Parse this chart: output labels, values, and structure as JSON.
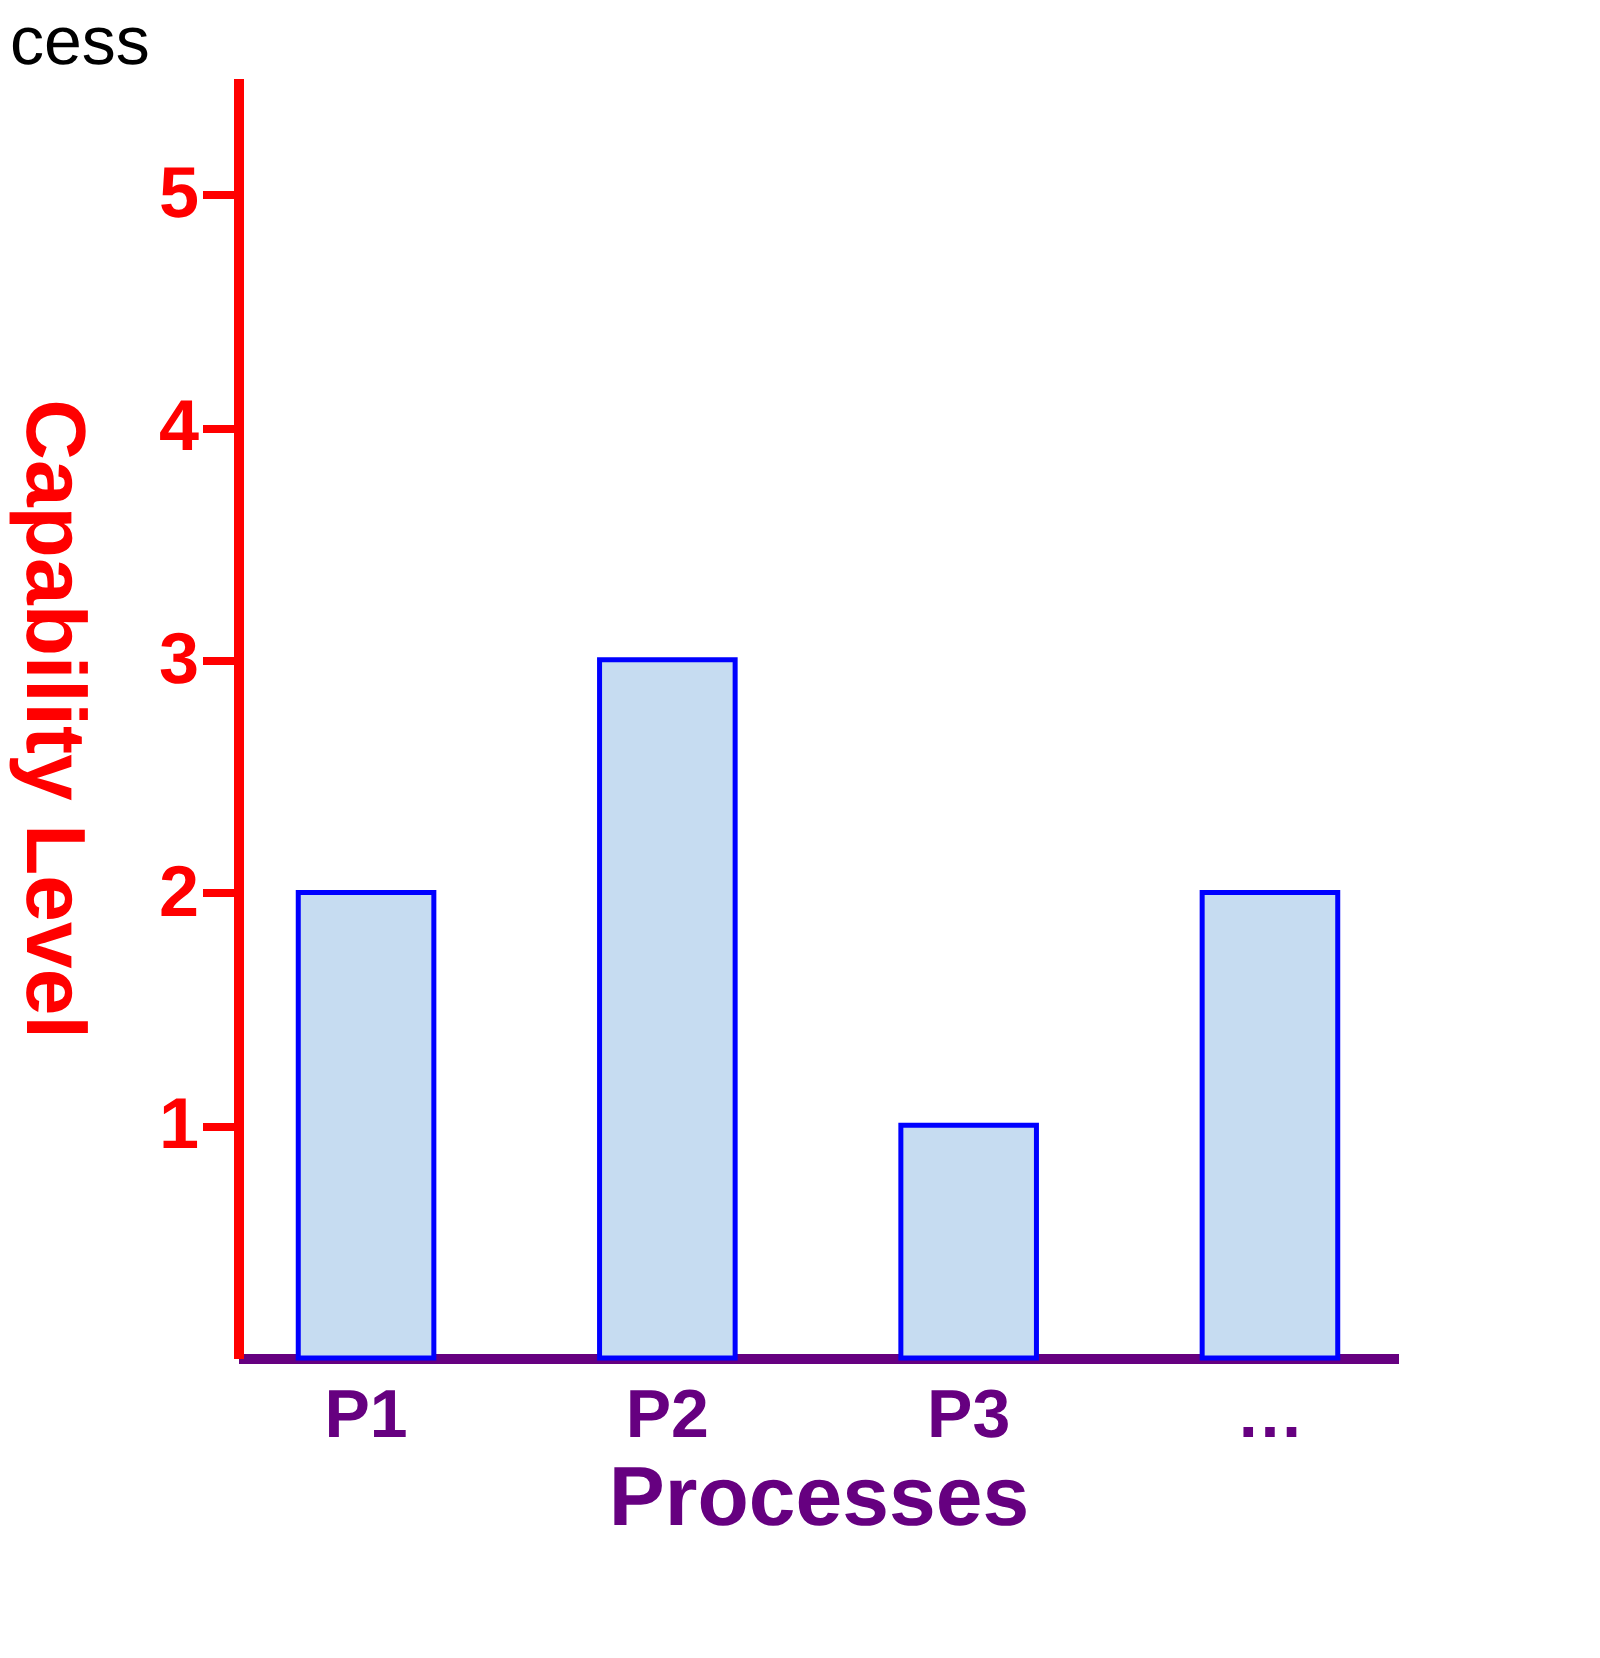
{
  "chart_data": {
    "type": "bar",
    "xlabel": "Processes",
    "ylabel": "Capability Level",
    "categories": [
      "P1",
      "P2",
      "P3",
      "…"
    ],
    "series": [
      {
        "color": "#c6dcf1",
        "values": [
          2,
          3,
          1,
          2
        ]
      }
    ],
    "ylim": [
      0,
      5.5
    ],
    "yticks": [
      1,
      2,
      3,
      4,
      5
    ],
    "grid": false,
    "annotations": [
      "cess"
    ]
  }
}
